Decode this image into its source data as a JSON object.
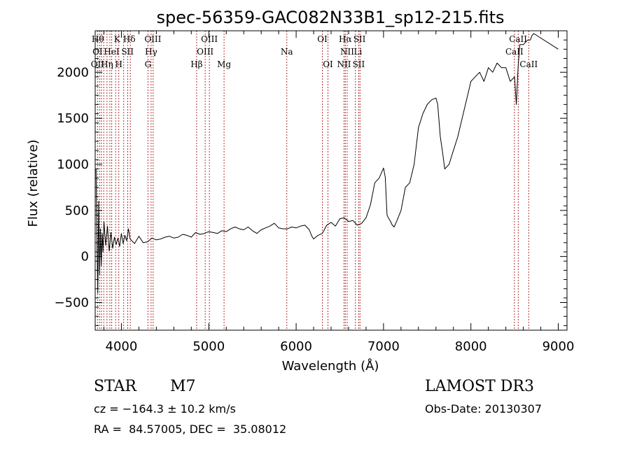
{
  "chart_data": {
    "type": "line",
    "title": "spec-56359-GAC082N33B1_sp12-215.fits",
    "xlabel": "Wavelength (Å)",
    "ylabel": "Flux (relative)",
    "xlim": [
      3700,
      9100
    ],
    "ylim": [
      -800,
      2450
    ],
    "xticks": [
      4000,
      5000,
      6000,
      7000,
      8000,
      9000
    ],
    "xtick_labels": [
      "4000",
      "5000",
      "6000",
      "7000",
      "8000",
      "9000"
    ],
    "yticks": [
      -500,
      0,
      500,
      1000,
      1500,
      2000
    ],
    "ytick_labels": [
      "−500",
      "0",
      "500",
      "1000",
      "1500",
      "2000"
    ],
    "line_color": "#000000",
    "marker_color": "#b03030",
    "spectrum": {
      "x": [
        3710,
        3720,
        3730,
        3740,
        3750,
        3760,
        3770,
        3780,
        3790,
        3800,
        3820,
        3840,
        3860,
        3880,
        3900,
        3920,
        3940,
        3960,
        3980,
        4000,
        4020,
        4040,
        4060,
        4080,
        4100,
        4150,
        4200,
        4250,
        4300,
        4350,
        4400,
        4450,
        4500,
        4550,
        4600,
        4650,
        4700,
        4750,
        4800,
        4850,
        4900,
        4950,
        5000,
        5050,
        5100,
        5150,
        5200,
        5250,
        5300,
        5350,
        5400,
        5450,
        5500,
        5550,
        5600,
        5650,
        5700,
        5750,
        5800,
        5850,
        5900,
        5950,
        6000,
        6050,
        6100,
        6150,
        6180,
        6200,
        6250,
        6300,
        6350,
        6400,
        6450,
        6500,
        6550,
        6600,
        6650,
        6700,
        6750,
        6800,
        6850,
        6900,
        6950,
        7000,
        7020,
        7040,
        7050,
        7080,
        7100,
        7120,
        7150,
        7200,
        7250,
        7300,
        7350,
        7400,
        7450,
        7500,
        7550,
        7600,
        7620,
        7650,
        7680,
        7700,
        7750,
        7800,
        7850,
        7900,
        7950,
        8000,
        8050,
        8100,
        8150,
        8200,
        8250,
        8300,
        8350,
        8400,
        8450,
        8500,
        8520,
        8540,
        8560,
        8600,
        8650,
        8680,
        8700,
        8720,
        9000
      ],
      "y": [
        950,
        150,
        -400,
        600,
        -200,
        300,
        -100,
        250,
        50,
        380,
        120,
        330,
        60,
        260,
        90,
        210,
        130,
        200,
        110,
        250,
        140,
        230,
        170,
        300,
        190,
        140,
        220,
        150,
        160,
        200,
        180,
        190,
        210,
        220,
        200,
        210,
        240,
        230,
        210,
        260,
        240,
        250,
        270,
        260,
        250,
        280,
        270,
        300,
        320,
        300,
        290,
        320,
        280,
        250,
        290,
        310,
        330,
        360,
        310,
        300,
        300,
        320,
        310,
        330,
        340,
        290,
        220,
        190,
        230,
        250,
        340,
        370,
        330,
        410,
        420,
        380,
        390,
        340,
        360,
        420,
        560,
        800,
        850,
        960,
        860,
        450,
        430,
        380,
        340,
        320,
        380,
        500,
        750,
        800,
        1000,
        1400,
        1550,
        1650,
        1700,
        1720,
        1650,
        1300,
        1100,
        950,
        1000,
        1150,
        1300,
        1500,
        1700,
        1900,
        1950,
        2000,
        1900,
        2050,
        2000,
        2100,
        2050,
        2050,
        1900,
        1950,
        1650,
        2050,
        2300,
        2300,
        2350,
        2350,
        2400,
        2420,
        2250
      ]
    },
    "line_markers": {
      "x": [
        3727,
        3750,
        3771,
        3798,
        3835,
        3868,
        3889,
        3934,
        3970,
        4026,
        4072,
        4102,
        4304,
        4340,
        4363,
        4861,
        4959,
        5007,
        5175,
        5893,
        6300,
        6364,
        6548,
        6563,
        6584,
        6678,
        6716,
        6731,
        8498,
        8542,
        8662
      ],
      "row1": [
        {
          "text": "Hθ",
          "x": 3730
        },
        {
          "text": "K",
          "x": 3950
        },
        {
          "text": "Hδ",
          "x": 4090
        },
        {
          "text": "OIII",
          "x": 4360
        },
        {
          "text": "OIII",
          "x": 5007
        },
        {
          "text": "OI",
          "x": 6300
        },
        {
          "text": "Hα",
          "x": 6563
        },
        {
          "text": "SII",
          "x": 6725
        },
        {
          "text": "CaII",
          "x": 8540
        }
      ],
      "row2": [
        {
          "text": "OI",
          "x": 3727
        },
        {
          "text": "HeI",
          "x": 3888
        },
        {
          "text": "SII",
          "x": 4070
        },
        {
          "text": "Hγ",
          "x": 4340
        },
        {
          "text": "OIII",
          "x": 4959
        },
        {
          "text": "Na",
          "x": 5893
        },
        {
          "text": "NII",
          "x": 6584
        },
        {
          "text": "Li",
          "x": 6708
        },
        {
          "text": "CaII",
          "x": 8498
        }
      ],
      "row3": [
        {
          "text": "OII",
          "x": 3727
        },
        {
          "text": "Hη",
          "x": 3835
        },
        {
          "text": "H",
          "x": 3970
        },
        {
          "text": "G",
          "x": 4304
        },
        {
          "text": "Hβ",
          "x": 4861
        },
        {
          "text": "Mg",
          "x": 5175
        },
        {
          "text": "OI",
          "x": 6364
        },
        {
          "text": "NII",
          "x": 6548
        },
        {
          "text": "SII",
          "x": 6716
        },
        {
          "text": "CaII",
          "x": 8662
        }
      ]
    }
  },
  "footer": {
    "object_class": "STAR",
    "subclass": "M7",
    "survey": "LAMOST DR3",
    "cz": "cz = −164.3 ± 10.2 km/s",
    "obs_date": "Obs-Date: 20130307",
    "coords": "RA =  84.57005, DEC =  35.08012"
  }
}
